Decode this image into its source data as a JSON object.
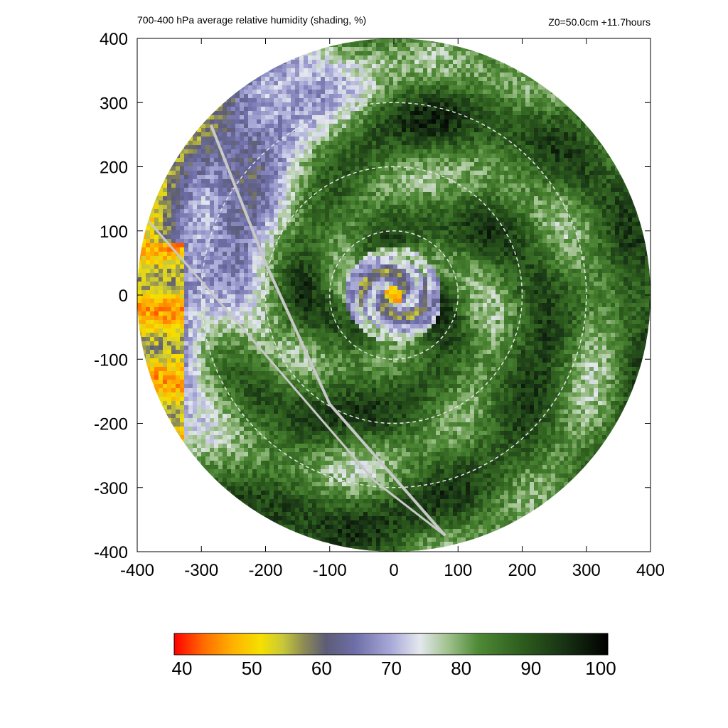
{
  "chart_data": {
    "type": "heatmap",
    "title": "700-400 hPa average relative humidity (shading, %)",
    "annotation": "Z0=50.0cm  +11.7hours",
    "xlim": [
      -400,
      400
    ],
    "ylim": [
      -400,
      400
    ],
    "x_ticks": [
      "-400",
      "-300",
      "-200",
      "-100",
      "0",
      "100",
      "200",
      "300",
      "400"
    ],
    "y_ticks": [
      "400",
      "300",
      "200",
      "100",
      "0",
      "-100",
      "-200",
      "-300",
      "-400"
    ],
    "x_tick_values": [
      -400,
      -300,
      -200,
      -100,
      0,
      100,
      200,
      300,
      400
    ],
    "y_tick_values": [
      400,
      300,
      200,
      100,
      0,
      -100,
      -200,
      -300,
      -400
    ],
    "domain_radius": 400,
    "range_rings": [
      100,
      200,
      300
    ],
    "colorbar": {
      "min": 40,
      "max": 100,
      "ticks": [
        "40",
        "50",
        "60",
        "70",
        "80",
        "90",
        "100"
      ],
      "tick_values": [
        40,
        50,
        60,
        70,
        80,
        90,
        100
      ],
      "stops": [
        {
          "v": 40,
          "c": "#ff0000"
        },
        {
          "v": 44,
          "c": "#ff6a00"
        },
        {
          "v": 48,
          "c": "#ffb000"
        },
        {
          "v": 52,
          "c": "#f5e000"
        },
        {
          "v": 55,
          "c": "#c8c83a"
        },
        {
          "v": 58,
          "c": "#8c8a55"
        },
        {
          "v": 61,
          "c": "#5c5c78"
        },
        {
          "v": 65,
          "c": "#6e6ea8"
        },
        {
          "v": 70,
          "c": "#a9a9d8"
        },
        {
          "v": 74,
          "c": "#e4e8ee"
        },
        {
          "v": 78,
          "c": "#9ec08a"
        },
        {
          "v": 82,
          "c": "#4f8a36"
        },
        {
          "v": 88,
          "c": "#2e5e1e"
        },
        {
          "v": 94,
          "c": "#173214"
        },
        {
          "v": 100,
          "c": "#000000"
        }
      ]
    },
    "colors": {
      "ring": "#e8e8e8",
      "track": "#c8c8c8"
    }
  }
}
